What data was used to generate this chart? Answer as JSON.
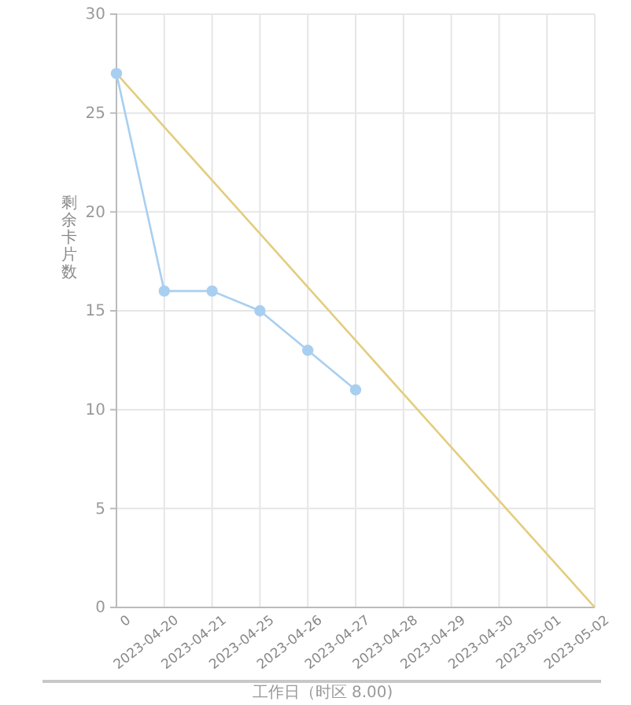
{
  "chart_data": {
    "type": "line",
    "xlabel": "工作日（时区 8.00)",
    "ylabel": "剩余卡片数",
    "categories": [
      "0",
      "2023-04-20",
      "2023-04-21",
      "2023-04-25",
      "2023-04-26",
      "2023-04-27",
      "2023-04-28",
      "2023-04-29",
      "2023-04-30",
      "2023-05-01",
      "2023-05-02"
    ],
    "series": [
      {
        "color": "#e3cd7e",
        "marker": "none",
        "values": [
          27,
          24.3,
          21.6,
          18.9,
          16.2,
          13.5,
          10.8,
          8.1,
          5.4,
          2.7,
          0
        ]
      },
      {
        "color": "#a9cff0",
        "marker": "circle",
        "values": [
          27,
          16,
          16,
          15,
          13,
          11,
          null,
          null,
          null,
          null,
          null
        ]
      }
    ],
    "ylim": [
      0,
      30
    ],
    "yticks": [
      0,
      5,
      10,
      15,
      20,
      25,
      30
    ],
    "grid": true
  }
}
